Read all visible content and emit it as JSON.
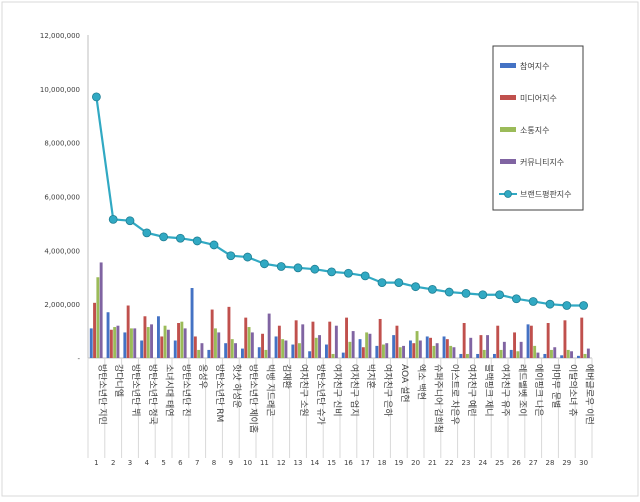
{
  "chart_data": {
    "type": "bar",
    "subtype": "bar-with-line-overlay",
    "categories": [
      "방탄소년단 지민",
      "강다니엘",
      "방탄소년단 뷔",
      "방탄소년단 정국",
      "소녀시대 태연",
      "방탄소년단 진",
      "옹성우",
      "방탄소년단 RM",
      "핫샷 하성운",
      "방탄소년단 제이홉",
      "빅뱅 지드래곤",
      "김재환",
      "여자친구 소원",
      "방탄소년단 슈가",
      "여자친구 신비",
      "여자친구 엄지",
      "박지훈",
      "여자친구 은하",
      "AOA 설현",
      "엑소 백현",
      "슈퍼주니어 김희철",
      "아스트로 차은우",
      "여자친구 예린",
      "블랙핑크 제니",
      "여자친구 유주",
      "레드벨벳 조이",
      "에이핑크 나은",
      "마마무 문별",
      "이달의소녀 츄",
      "에버글로우 이런"
    ],
    "index_labels": [
      "1",
      "2",
      "3",
      "4",
      "5",
      "6",
      "7",
      "8",
      "9",
      "10",
      "11",
      "12",
      "13",
      "14",
      "15",
      "16",
      "17",
      "18",
      "19",
      "20",
      "21",
      "22",
      "23",
      "24",
      "25",
      "26",
      "27",
      "28",
      "29",
      "30"
    ],
    "series": [
      {
        "name": "참여지수",
        "kind": "bar",
        "color": "#4472C4",
        "values": [
          1100000,
          1700000,
          950000,
          650000,
          1550000,
          650000,
          2600000,
          300000,
          550000,
          350000,
          400000,
          800000,
          500000,
          250000,
          500000,
          200000,
          700000,
          450000,
          850000,
          650000,
          800000,
          800000,
          150000,
          150000,
          150000,
          300000,
          1250000,
          150000,
          100000,
          80000
        ]
      },
      {
        "name": "미디어지수",
        "kind": "bar",
        "color": "#C0504D",
        "values": [
          2050000,
          1050000,
          1950000,
          1550000,
          800000,
          1300000,
          800000,
          1800000,
          1900000,
          1500000,
          900000,
          1200000,
          1400000,
          1350000,
          1350000,
          1500000,
          400000,
          1450000,
          1200000,
          550000,
          750000,
          700000,
          1300000,
          850000,
          1200000,
          950000,
          1200000,
          1300000,
          1400000,
          1500000
        ]
      },
      {
        "name": "소통지수",
        "kind": "bar",
        "color": "#9BBB59",
        "values": [
          3000000,
          1150000,
          1100000,
          1150000,
          1200000,
          1350000,
          300000,
          1100000,
          700000,
          1150000,
          300000,
          700000,
          550000,
          750000,
          150000,
          600000,
          950000,
          500000,
          400000,
          1000000,
          450000,
          450000,
          150000,
          300000,
          300000,
          250000,
          450000,
          300000,
          300000,
          150000
        ]
      },
      {
        "name": "커뮤니티지수",
        "kind": "bar",
        "color": "#8064A2",
        "values": [
          3550000,
          1200000,
          1100000,
          1250000,
          1050000,
          1100000,
          550000,
          950000,
          550000,
          950000,
          1650000,
          650000,
          1250000,
          850000,
          1200000,
          1000000,
          900000,
          550000,
          450000,
          650000,
          550000,
          400000,
          750000,
          850000,
          600000,
          600000,
          200000,
          400000,
          250000,
          350000
        ]
      },
      {
        "name": "브랜드평판지수",
        "kind": "line",
        "color": "#31A9C3",
        "values": [
          9700000,
          5150000,
          5100000,
          4650000,
          4500000,
          4450000,
          4350000,
          4200000,
          3800000,
          3750000,
          3500000,
          3400000,
          3350000,
          3300000,
          3200000,
          3150000,
          3050000,
          2800000,
          2800000,
          2650000,
          2550000,
          2450000,
          2400000,
          2350000,
          2350000,
          2200000,
          2100000,
          2000000,
          1950000,
          1950000
        ]
      }
    ],
    "ylim": [
      0,
      12000000
    ],
    "yticks": [
      0,
      2000000,
      4000000,
      6000000,
      8000000,
      10000000,
      12000000
    ],
    "ytick_labels": [
      "-",
      "2,000,000",
      "4,000,000",
      "6,000,000",
      "8,000,000",
      "10,000,000",
      "12,000,000"
    ],
    "grid": false,
    "legend_position": "top-right inside",
    "xlabel": "",
    "ylabel": "",
    "title": ""
  }
}
